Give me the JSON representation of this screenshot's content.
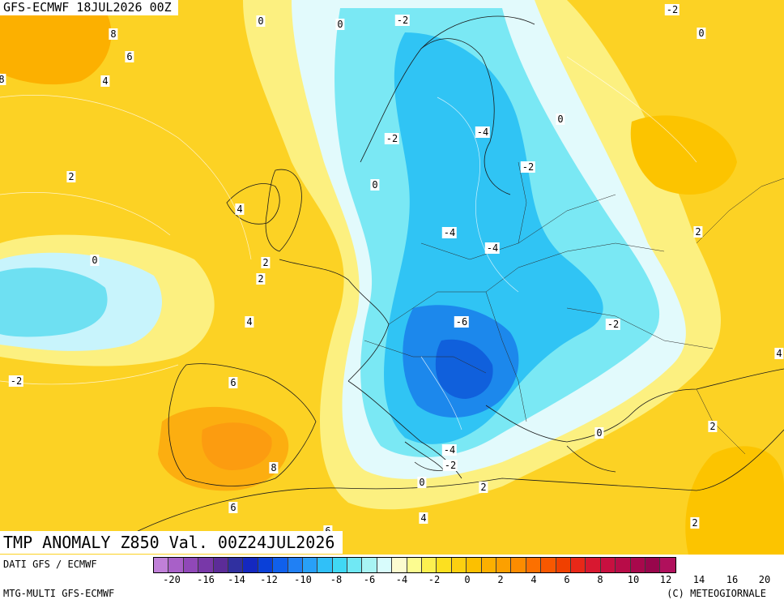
{
  "header": {
    "run_label": "GFS-ECMWF 18JUL2026 00Z",
    "valid_label": "TMP ANOMALY Z850 Val. 00Z24JUL2026"
  },
  "footer": {
    "source": "DATI GFS / ECMWF",
    "model": "MTG-MULTI GFS-ECMWF",
    "copyright": "(C) METEOGIORNALE"
  },
  "map": {
    "field": "Temperature anomaly at 850 hPa",
    "contour_labels": [
      {
        "text": "0",
        "region": "north-atlantic-top"
      },
      {
        "text": "0",
        "region": "norwegian-sea"
      },
      {
        "text": "-2",
        "region": "northern-scandinavia"
      },
      {
        "text": "-2",
        "region": "northwest-russia-top"
      },
      {
        "text": "0",
        "region": "arctic-russia"
      },
      {
        "text": "8",
        "region": "northwest-atlantic"
      },
      {
        "text": "6",
        "region": "northwest-atlantic"
      },
      {
        "text": "4",
        "region": "northwest-atlantic"
      },
      {
        "text": "8",
        "region": "west-edge"
      },
      {
        "text": "-4",
        "region": "finland"
      },
      {
        "text": "0",
        "region": "northwest-russia"
      },
      {
        "text": "-2",
        "region": "norway-coast"
      },
      {
        "text": "-2",
        "region": "baltic-states"
      },
      {
        "text": "2",
        "region": "mid-atlantic"
      },
      {
        "text": "0",
        "region": "north-sea"
      },
      {
        "text": "4",
        "region": "ireland"
      },
      {
        "text": "-4",
        "region": "southern-sweden"
      },
      {
        "text": "-4",
        "region": "belarus"
      },
      {
        "text": "2",
        "region": "russia-east"
      },
      {
        "text": "0",
        "region": "east-atlantic"
      },
      {
        "text": "2",
        "region": "wales"
      },
      {
        "text": "2",
        "region": "english-channel"
      },
      {
        "text": "-6",
        "region": "hungary"
      },
      {
        "text": "4",
        "region": "bay-of-biscay"
      },
      {
        "text": "-2",
        "region": "ukraine"
      },
      {
        "text": "-2",
        "region": "atlantic-azores"
      },
      {
        "text": "4",
        "region": "caucasus-edge"
      },
      {
        "text": "6",
        "region": "northern-spain"
      },
      {
        "text": "2",
        "region": "turkey-east"
      },
      {
        "text": "0",
        "region": "aegean"
      },
      {
        "text": "8",
        "region": "southern-spain"
      },
      {
        "text": "-4",
        "region": "southern-italy"
      },
      {
        "text": "-2",
        "region": "sicily"
      },
      {
        "text": "0",
        "region": "tunisia"
      },
      {
        "text": "2",
        "region": "libya-coast"
      },
      {
        "text": "4",
        "region": "libya"
      },
      {
        "text": "6",
        "region": "morocco"
      },
      {
        "text": "2",
        "region": "levant"
      },
      {
        "text": "6",
        "region": "algeria"
      }
    ]
  },
  "legend": {
    "colors": [
      "#c080d8",
      "#a860c8",
      "#9048b8",
      "#7838a8",
      "#5c2c98",
      "#3030a0",
      "#1428c0",
      "#0a40d8",
      "#1060ec",
      "#2080f4",
      "#28a0f8",
      "#30c0f8",
      "#40d8f4",
      "#70e8f4",
      "#a8f4f4",
      "#d8fcfc",
      "#fcfcd0",
      "#fcfc90",
      "#fcf050",
      "#fce020",
      "#fcd010",
      "#fcc000",
      "#fcb000",
      "#fca000",
      "#fc8c00",
      "#fc7000",
      "#f85800",
      "#f04000",
      "#e82818",
      "#d81830",
      "#c81040",
      "#b80c48",
      "#a8084c",
      "#98064c",
      "#b0105c"
    ],
    "ticks": [
      "-20",
      "-16",
      "-14",
      "-12",
      "-10",
      "-8",
      "-6",
      "-4",
      "-2",
      "0",
      "2",
      "4",
      "6",
      "8",
      "10",
      "12",
      "14",
      "16",
      "20"
    ]
  }
}
